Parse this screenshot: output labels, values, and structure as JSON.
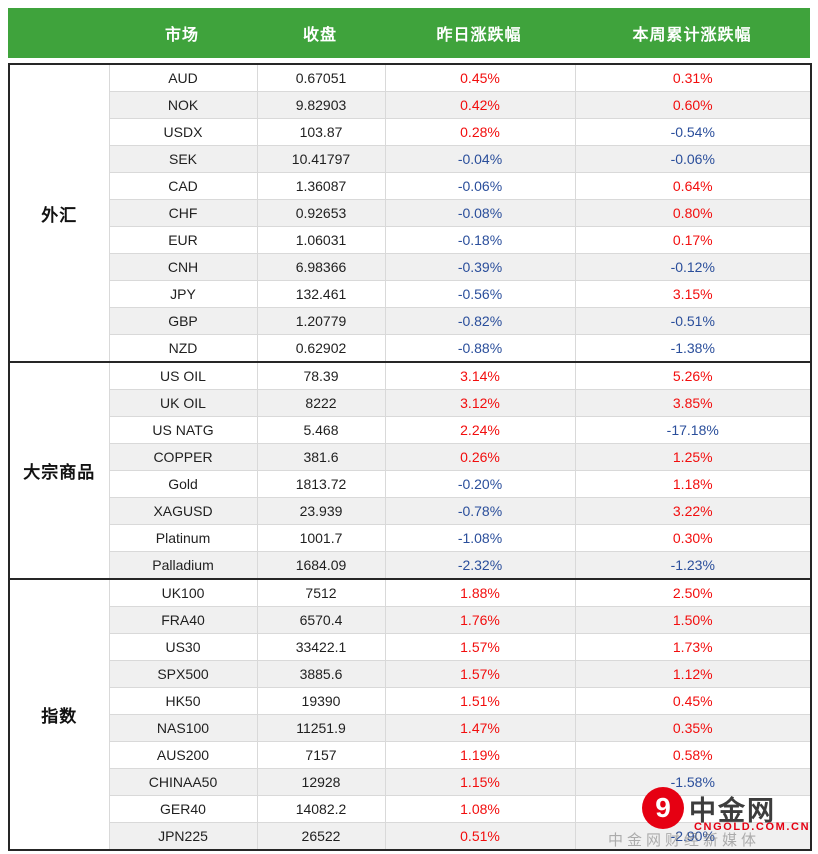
{
  "colors": {
    "header_bg": "#3fa33c",
    "positive": "#f20d0d",
    "negative": "#2a4e9b",
    "row_alt_bg": "#f0f0f0",
    "border_dark": "#262626",
    "border_light": "#d9d9d9",
    "watermark_red": "#e60012",
    "watermark_brand_text": "#3d3d3d"
  },
  "chart_data": {
    "type": "table",
    "columns": [
      "市场",
      "收盘",
      "昨日涨跌幅",
      "本周累计涨跌幅"
    ],
    "groups": [
      {
        "id": "forex",
        "label": "外汇",
        "rows": [
          [
            "AUD",
            "0.67051",
            "0.45%",
            "0.31%"
          ],
          [
            "NOK",
            "9.82903",
            "0.42%",
            "0.60%"
          ],
          [
            "USDX",
            "103.87",
            "0.28%",
            "-0.54%"
          ],
          [
            "SEK",
            "10.41797",
            "-0.04%",
            "-0.06%"
          ],
          [
            "CAD",
            "1.36087",
            "-0.06%",
            "0.64%"
          ],
          [
            "CHF",
            "0.92653",
            "-0.08%",
            "0.80%"
          ],
          [
            "EUR",
            "1.06031",
            "-0.18%",
            "0.17%"
          ],
          [
            "CNH",
            "6.98366",
            "-0.39%",
            "-0.12%"
          ],
          [
            "JPY",
            "132.461",
            "-0.56%",
            "3.15%"
          ],
          [
            "GBP",
            "1.20779",
            "-0.82%",
            "-0.51%"
          ],
          [
            "NZD",
            "0.62902",
            "-0.88%",
            "-1.38%"
          ]
        ]
      },
      {
        "id": "commodities",
        "label": "大宗商品",
        "rows": [
          [
            "US OIL",
            "78.39",
            "3.14%",
            "5.26%"
          ],
          [
            "UK OIL",
            "8222",
            "3.12%",
            "3.85%"
          ],
          [
            "US NATG",
            "5.468",
            "2.24%",
            "-17.18%"
          ],
          [
            "COPPER",
            "381.6",
            "0.26%",
            "1.25%"
          ],
          [
            "Gold",
            "1813.72",
            "-0.20%",
            "1.18%"
          ],
          [
            "XAGUSD",
            "23.939",
            "-0.78%",
            "3.22%"
          ],
          [
            "Platinum",
            "1001.7",
            "-1.08%",
            "0.30%"
          ],
          [
            "Palladium",
            "1684.09",
            "-2.32%",
            "-1.23%"
          ]
        ]
      },
      {
        "id": "indices",
        "label": "指数",
        "rows": [
          [
            "UK100",
            "7512",
            "1.88%",
            "2.50%"
          ],
          [
            "FRA40",
            "6570.4",
            "1.76%",
            "1.50%"
          ],
          [
            "US30",
            "33422.1",
            "1.57%",
            "1.73%"
          ],
          [
            "SPX500",
            "3885.6",
            "1.57%",
            "1.12%"
          ],
          [
            "HK50",
            "19390",
            "1.51%",
            "0.45%"
          ],
          [
            "NAS100",
            "11251.9",
            "1.47%",
            "0.35%"
          ],
          [
            "AUS200",
            "7157",
            "1.19%",
            "0.58%"
          ],
          [
            "CHINAA50",
            "12928",
            "1.15%",
            "-1.58%"
          ],
          [
            "GER40",
            "14082.2",
            "1.08%",
            ""
          ],
          [
            "JPN225",
            "26522",
            "0.51%",
            "-2.90%"
          ]
        ]
      }
    ]
  },
  "watermark": {
    "logo_glyph": "9",
    "brand": "中金网",
    "domain": "CNGOLD.COM.CN",
    "tagline": "中金网财经新媒体"
  }
}
